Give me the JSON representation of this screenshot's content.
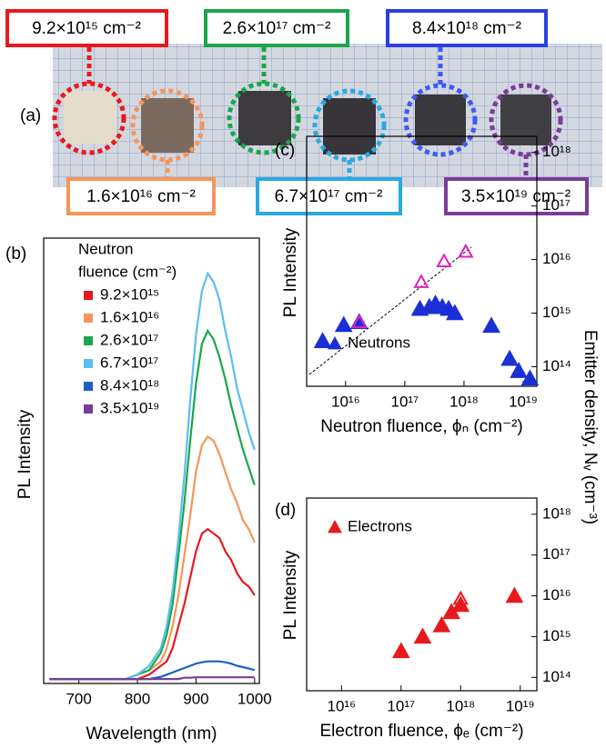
{
  "photo": {
    "panel_label": "(a)",
    "labels": [
      "9.2×10¹⁵ cm⁻²",
      "2.6×10¹⁷ cm⁻²",
      "8.4×10¹⁸ cm⁻²",
      "1.6×10¹⁶ cm⁻²",
      "6.7×10¹⁷ cm⁻²",
      "3.5×10¹⁹ cm⁻²"
    ]
  },
  "chart_data": [
    {
      "type": "line",
      "panel_label": "(b)",
      "xlabel": "Wavelength (nm)",
      "ylabel": "PL Intensity",
      "legend_title": [
        "Neutron",
        "fluence (cm⁻²)"
      ],
      "xlim": [
        640,
        1008
      ],
      "xticks": [
        700,
        800,
        900,
        1000
      ],
      "ylim": [
        -0.01,
        1
      ],
      "x": [
        650,
        700,
        750,
        780,
        800,
        820,
        840,
        850,
        860,
        870,
        880,
        890,
        900,
        910,
        920,
        930,
        940,
        950,
        960,
        970,
        980,
        990,
        1000
      ],
      "series": [
        {
          "name": "9.2×10¹⁵",
          "color": "#e8191e",
          "values": [
            0,
            0,
            0,
            0,
            0,
            0.01,
            0.03,
            0.04,
            0.07,
            0.12,
            0.17,
            0.23,
            0.29,
            0.33,
            0.34,
            0.33,
            0.32,
            0.29,
            0.27,
            0.24,
            0.22,
            0.21,
            0.19
          ]
        },
        {
          "name": "1.6×10¹⁶",
          "color": "#f7955a",
          "values": [
            0,
            0,
            0,
            0,
            0.01,
            0.02,
            0.04,
            0.07,
            0.12,
            0.19,
            0.28,
            0.37,
            0.47,
            0.53,
            0.55,
            0.54,
            0.51,
            0.47,
            0.43,
            0.4,
            0.36,
            0.34,
            0.31
          ]
        },
        {
          "name": "2.6×10¹⁷",
          "color": "#1aa64b",
          "values": [
            0,
            0,
            0,
            0,
            0.01,
            0.02,
            0.06,
            0.1,
            0.17,
            0.28,
            0.4,
            0.54,
            0.67,
            0.76,
            0.79,
            0.77,
            0.73,
            0.68,
            0.62,
            0.57,
            0.52,
            0.48,
            0.44
          ]
        },
        {
          "name": "6.7×10¹⁷",
          "color": "#5bbdf0",
          "values": [
            0,
            0,
            0,
            0,
            0.01,
            0.03,
            0.07,
            0.12,
            0.2,
            0.32,
            0.46,
            0.63,
            0.78,
            0.88,
            0.92,
            0.9,
            0.86,
            0.79,
            0.73,
            0.66,
            0.61,
            0.56,
            0.52
          ]
        },
        {
          "name": "8.4×10¹⁸",
          "color": "#1f5ec4",
          "values": [
            0,
            0,
            0,
            0,
            0,
            0,
            0.005,
            0.01,
            0.015,
            0.02,
            0.025,
            0.03,
            0.035,
            0.038,
            0.04,
            0.04,
            0.04,
            0.038,
            0.035,
            0.03,
            0.027,
            0.024,
            0.02
          ]
        },
        {
          "name": "3.5×10¹⁹",
          "color": "#7a3c98",
          "values": [
            0,
            0,
            0,
            0,
            0,
            0,
            0,
            0,
            0,
            0,
            0.003,
            0.003,
            0.004,
            0.004,
            0.004,
            0.004,
            0.004,
            0.004,
            0.004,
            0.004,
            0.004,
            0.004,
            0.004
          ]
        }
      ]
    },
    {
      "type": "scatter",
      "panel_label": "(c)",
      "xlabel": "Neutron fluence, ϕₙ (cm⁻²)",
      "ylabel": "PL Intensity",
      "y2label": "Emitter density, Nᵥ (cm⁻³)",
      "log": true,
      "xlim": [
        2200000000000000.0,
        1.7e+19
      ],
      "xticks": [
        {
          "value": 1e+16,
          "label": "10¹⁶"
        },
        {
          "value": 1e+17,
          "label": "10¹⁷"
        },
        {
          "value": 1e+18,
          "label": "10¹⁸"
        },
        {
          "value": 1e+19,
          "label": "10¹⁹"
        }
      ],
      "y2lim": [
        43000000000000.0,
        2e+18
      ],
      "y2ticks": [
        {
          "value": 100000000000000.0,
          "label": "10¹⁴"
        },
        {
          "value": 1000000000000000.0,
          "label": "10¹⁵"
        },
        {
          "value": 1e+16,
          "label": "10¹⁶"
        },
        {
          "value": 1e+17,
          "label": "10¹⁷"
        },
        {
          "value": 1e+18,
          "label": "10¹⁸"
        }
      ],
      "series": [
        {
          "name": "Neutrons",
          "color": "#1a2fd6",
          "marker": "filled",
          "axis": "y2",
          "x": [
            4100000000000000.0,
            9300000000000000.0,
            1.7e+16,
            1.8e+17,
            2.6e+17,
            3.3e+17,
            4.3e+17,
            5.5e+17,
            7e+17,
            2.9e+18,
            5.9e+18,
            8.4e+18,
            1.3e+19
          ],
          "values": [
            300000000000000.0,
            600000000000000.0,
            680000000000000.0,
            1200000000000000.0,
            1300000000000000.0,
            1500000000000000.0,
            1300000000000000.0,
            1200000000000000.0,
            1000000000000000.0,
            580000000000000.0,
            140000000000000.0,
            83000000000000.0,
            60000000000000.0
          ]
        },
        {
          "color": "#e020c0",
          "marker": "open",
          "axis": "y2",
          "x": [
            1.7e+16,
            1.9e+17,
            4.6e+17,
            1.07e+18
          ],
          "values": [
            680000000000000.0,
            3800000000000000.0,
            9300000000000000.0,
            1.4e+16
          ]
        }
      ]
    },
    {
      "type": "scatter",
      "panel_label": "(d)",
      "xlabel": "Electron fluence, ϕₑ (cm⁻²)",
      "ylabel": "PL Intensity",
      "log": true,
      "xlim": [
        2600000000000000.0,
        1.9e+19
      ],
      "xticks": [
        {
          "value": 1e+16,
          "label": "10¹⁶"
        },
        {
          "value": 1e+17,
          "label": "10¹⁷"
        },
        {
          "value": 1e+18,
          "label": "10¹⁸"
        },
        {
          "value": 1e+19,
          "label": "10¹⁹"
        }
      ],
      "y2lim": [
        47000000000000.0,
        2.5e+18
      ],
      "y2ticks": [
        {
          "value": 100000000000000.0,
          "label": "10¹⁴"
        },
        {
          "value": 1000000000000000.0,
          "label": "10¹⁵"
        },
        {
          "value": 1e+16,
          "label": "10¹⁶"
        },
        {
          "value": 1e+17,
          "label": "10¹⁷"
        },
        {
          "value": 1e+18,
          "label": "10¹⁸"
        }
      ],
      "series": [
        {
          "name": "Electrons",
          "color": "#e8191e",
          "marker": "filled",
          "axis": "y2",
          "x": [
            1e+17,
            2.3e+17,
            4.8e+17,
            7e+17,
            1e+18,
            8e+18
          ],
          "values": [
            440000000000000.0,
            1000000000000000.0,
            1900000000000000.0,
            4000000000000000.0,
            6000000000000000.0,
            1e+16
          ]
        },
        {
          "color": "#e8191e",
          "marker": "open",
          "axis": "y2",
          "x": [
            1e+18
          ],
          "values": [
            8500000000000000.0
          ]
        }
      ]
    }
  ]
}
